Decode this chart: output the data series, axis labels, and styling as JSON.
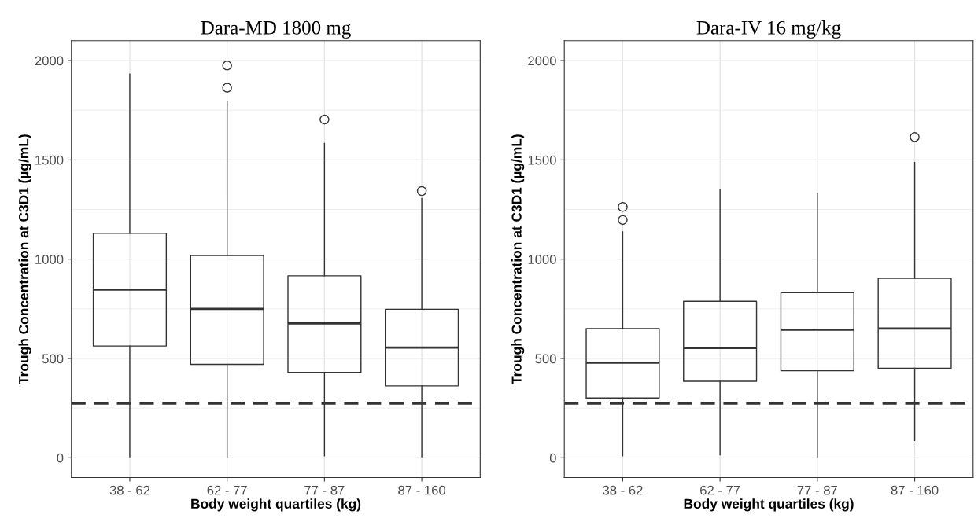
{
  "chart_data": [
    {
      "type": "box",
      "title": "Dara-MD 1800 mg",
      "xlabel": "Body weight quartiles (kg)",
      "ylabel": "Trough Concentration at C3D1 (µg/mL)",
      "categories": [
        "38 - 62",
        "62 - 77",
        "77 - 87",
        "87 - 160"
      ],
      "boxes": [
        {
          "low": 5,
          "q1": 563,
          "median": 847,
          "q3": 1130,
          "high": 1932
        },
        {
          "low": 5,
          "q1": 470,
          "median": 750,
          "q3": 1018,
          "high": 1792,
          "outliers": [
            1863,
            1975
          ]
        },
        {
          "low": 10,
          "q1": 430,
          "median": 677,
          "q3": 916,
          "high": 1583,
          "outliers": [
            1703
          ]
        },
        {
          "low": 5,
          "q1": 362,
          "median": 555,
          "q3": 748,
          "high": 1306,
          "outliers": [
            1343
          ]
        }
      ],
      "ylim": [
        -100,
        2100
      ],
      "yticks": [
        0,
        500,
        1000,
        1500,
        2000
      ],
      "grid": true,
      "ref_lines": [
        {
          "axis": "y",
          "value": 275,
          "color": "#333333",
          "line_style": "dashed"
        }
      ]
    },
    {
      "type": "box",
      "title": "Dara-IV 16 mg/kg",
      "xlabel": "Body weight quartiles (kg)",
      "ylabel": "Trough Concentration at C3D1 (µg/mL)",
      "categories": [
        "38 - 62",
        "62 - 77",
        "77 - 87",
        "87 - 160"
      ],
      "boxes": [
        {
          "low": 10,
          "q1": 301,
          "median": 479,
          "q3": 651,
          "high": 1138,
          "outliers": [
            1197,
            1263
          ]
        },
        {
          "low": 15,
          "q1": 385,
          "median": 553,
          "q3": 788,
          "high": 1352
        },
        {
          "low": 5,
          "q1": 438,
          "median": 645,
          "q3": 831,
          "high": 1331
        },
        {
          "low": 87,
          "q1": 451,
          "median": 651,
          "q3": 903,
          "high": 1487,
          "outliers": [
            1615
          ]
        }
      ],
      "ylim": [
        -100,
        2100
      ],
      "yticks": [
        0,
        500,
        1000,
        1500,
        2000
      ],
      "grid": true,
      "ref_lines": [
        {
          "axis": "y",
          "value": 275,
          "color": "#333333",
          "line_style": "dashed"
        }
      ]
    }
  ]
}
